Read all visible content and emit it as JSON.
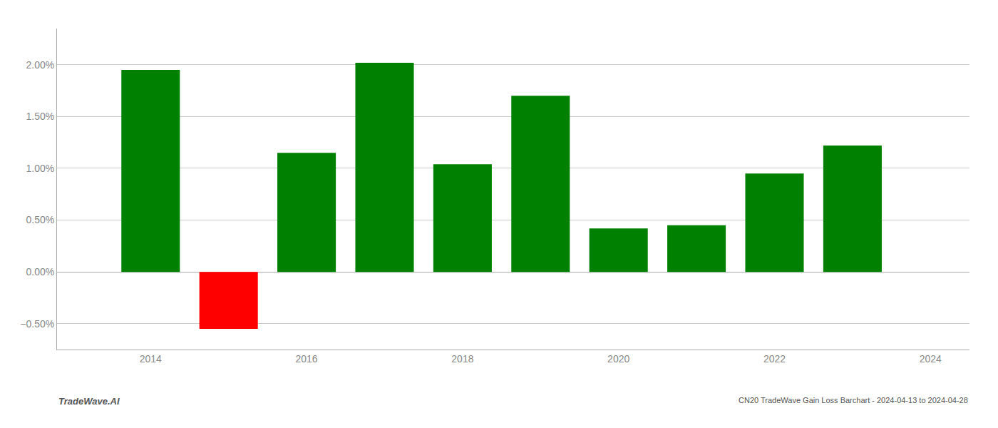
{
  "chart_data": {
    "type": "bar",
    "x": [
      2014,
      2015,
      2016,
      2017,
      2018,
      2019,
      2020,
      2021,
      2022,
      2023
    ],
    "values": [
      0.0195,
      -0.0055,
      0.0115,
      0.0202,
      0.0104,
      0.017,
      0.0042,
      0.0045,
      0.0095,
      0.0122
    ],
    "colors": [
      "#008000",
      "#ff0000",
      "#008000",
      "#008000",
      "#008000",
      "#008000",
      "#008000",
      "#008000",
      "#008000",
      "#008000"
    ],
    "xlim": [
      2012.8,
      2024.5
    ],
    "xticks": [
      2014,
      2016,
      2018,
      2020,
      2022,
      2024
    ],
    "ylim": [
      -0.0075,
      0.0235
    ],
    "yticks": [
      {
        "value": -0.005,
        "label": "−0.50%"
      },
      {
        "value": 0.0,
        "label": "0.00%"
      },
      {
        "value": 0.005,
        "label": "0.50%"
      },
      {
        "value": 0.01,
        "label": "1.00%"
      },
      {
        "value": 0.015,
        "label": "1.50%"
      },
      {
        "value": 0.02,
        "label": "2.00%"
      }
    ],
    "grid": true,
    "annotations": [
      "TradeWave.AI",
      "CN20 TradeWave Gain Loss Barchart - 2024-04-13 to 2024-04-28"
    ]
  }
}
